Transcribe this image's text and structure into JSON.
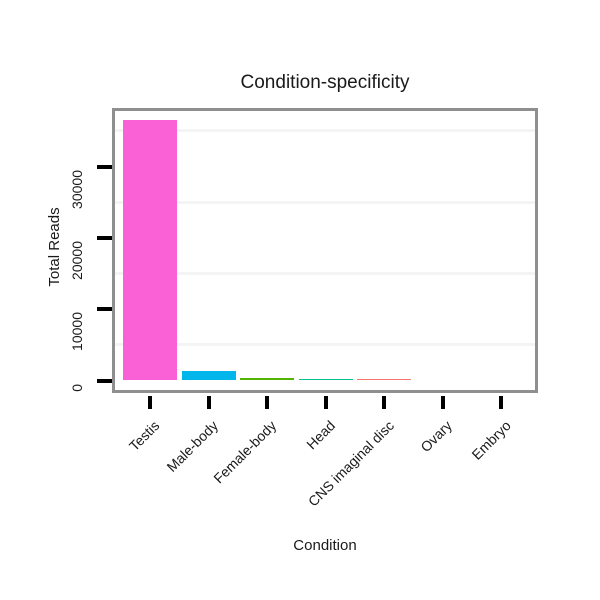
{
  "chart_data": {
    "type": "bar",
    "title": "Condition-specificity",
    "xlabel": "Condition",
    "ylabel": "Total Reads",
    "categories": [
      "Testis",
      "Male-body",
      "Female-body",
      "Head",
      "CNS imaginal disc",
      "Ovary",
      "Embryo"
    ],
    "values": [
      36500,
      1300,
      390,
      240,
      210,
      0,
      0
    ],
    "bar_colors": [
      "#FB61D7",
      "#00B6EB",
      "#53B400",
      "#00C094",
      "#F8766D",
      "#A58AFF",
      "#C49A00"
    ],
    "y_ticks": [
      0,
      10000,
      20000,
      30000
    ],
    "y_minor_gridlines": [
      5000,
      15000,
      25000,
      35000
    ],
    "ylim": [
      -1350,
      37800
    ],
    "legend": "none",
    "grid": "minor-horizontal-only"
  },
  "colors": {
    "plot_border": "#8f8f8f",
    "gridline": "#f4f4f4",
    "tick": "#000000",
    "text": "#1a1a1a",
    "background": "#ffffff"
  }
}
